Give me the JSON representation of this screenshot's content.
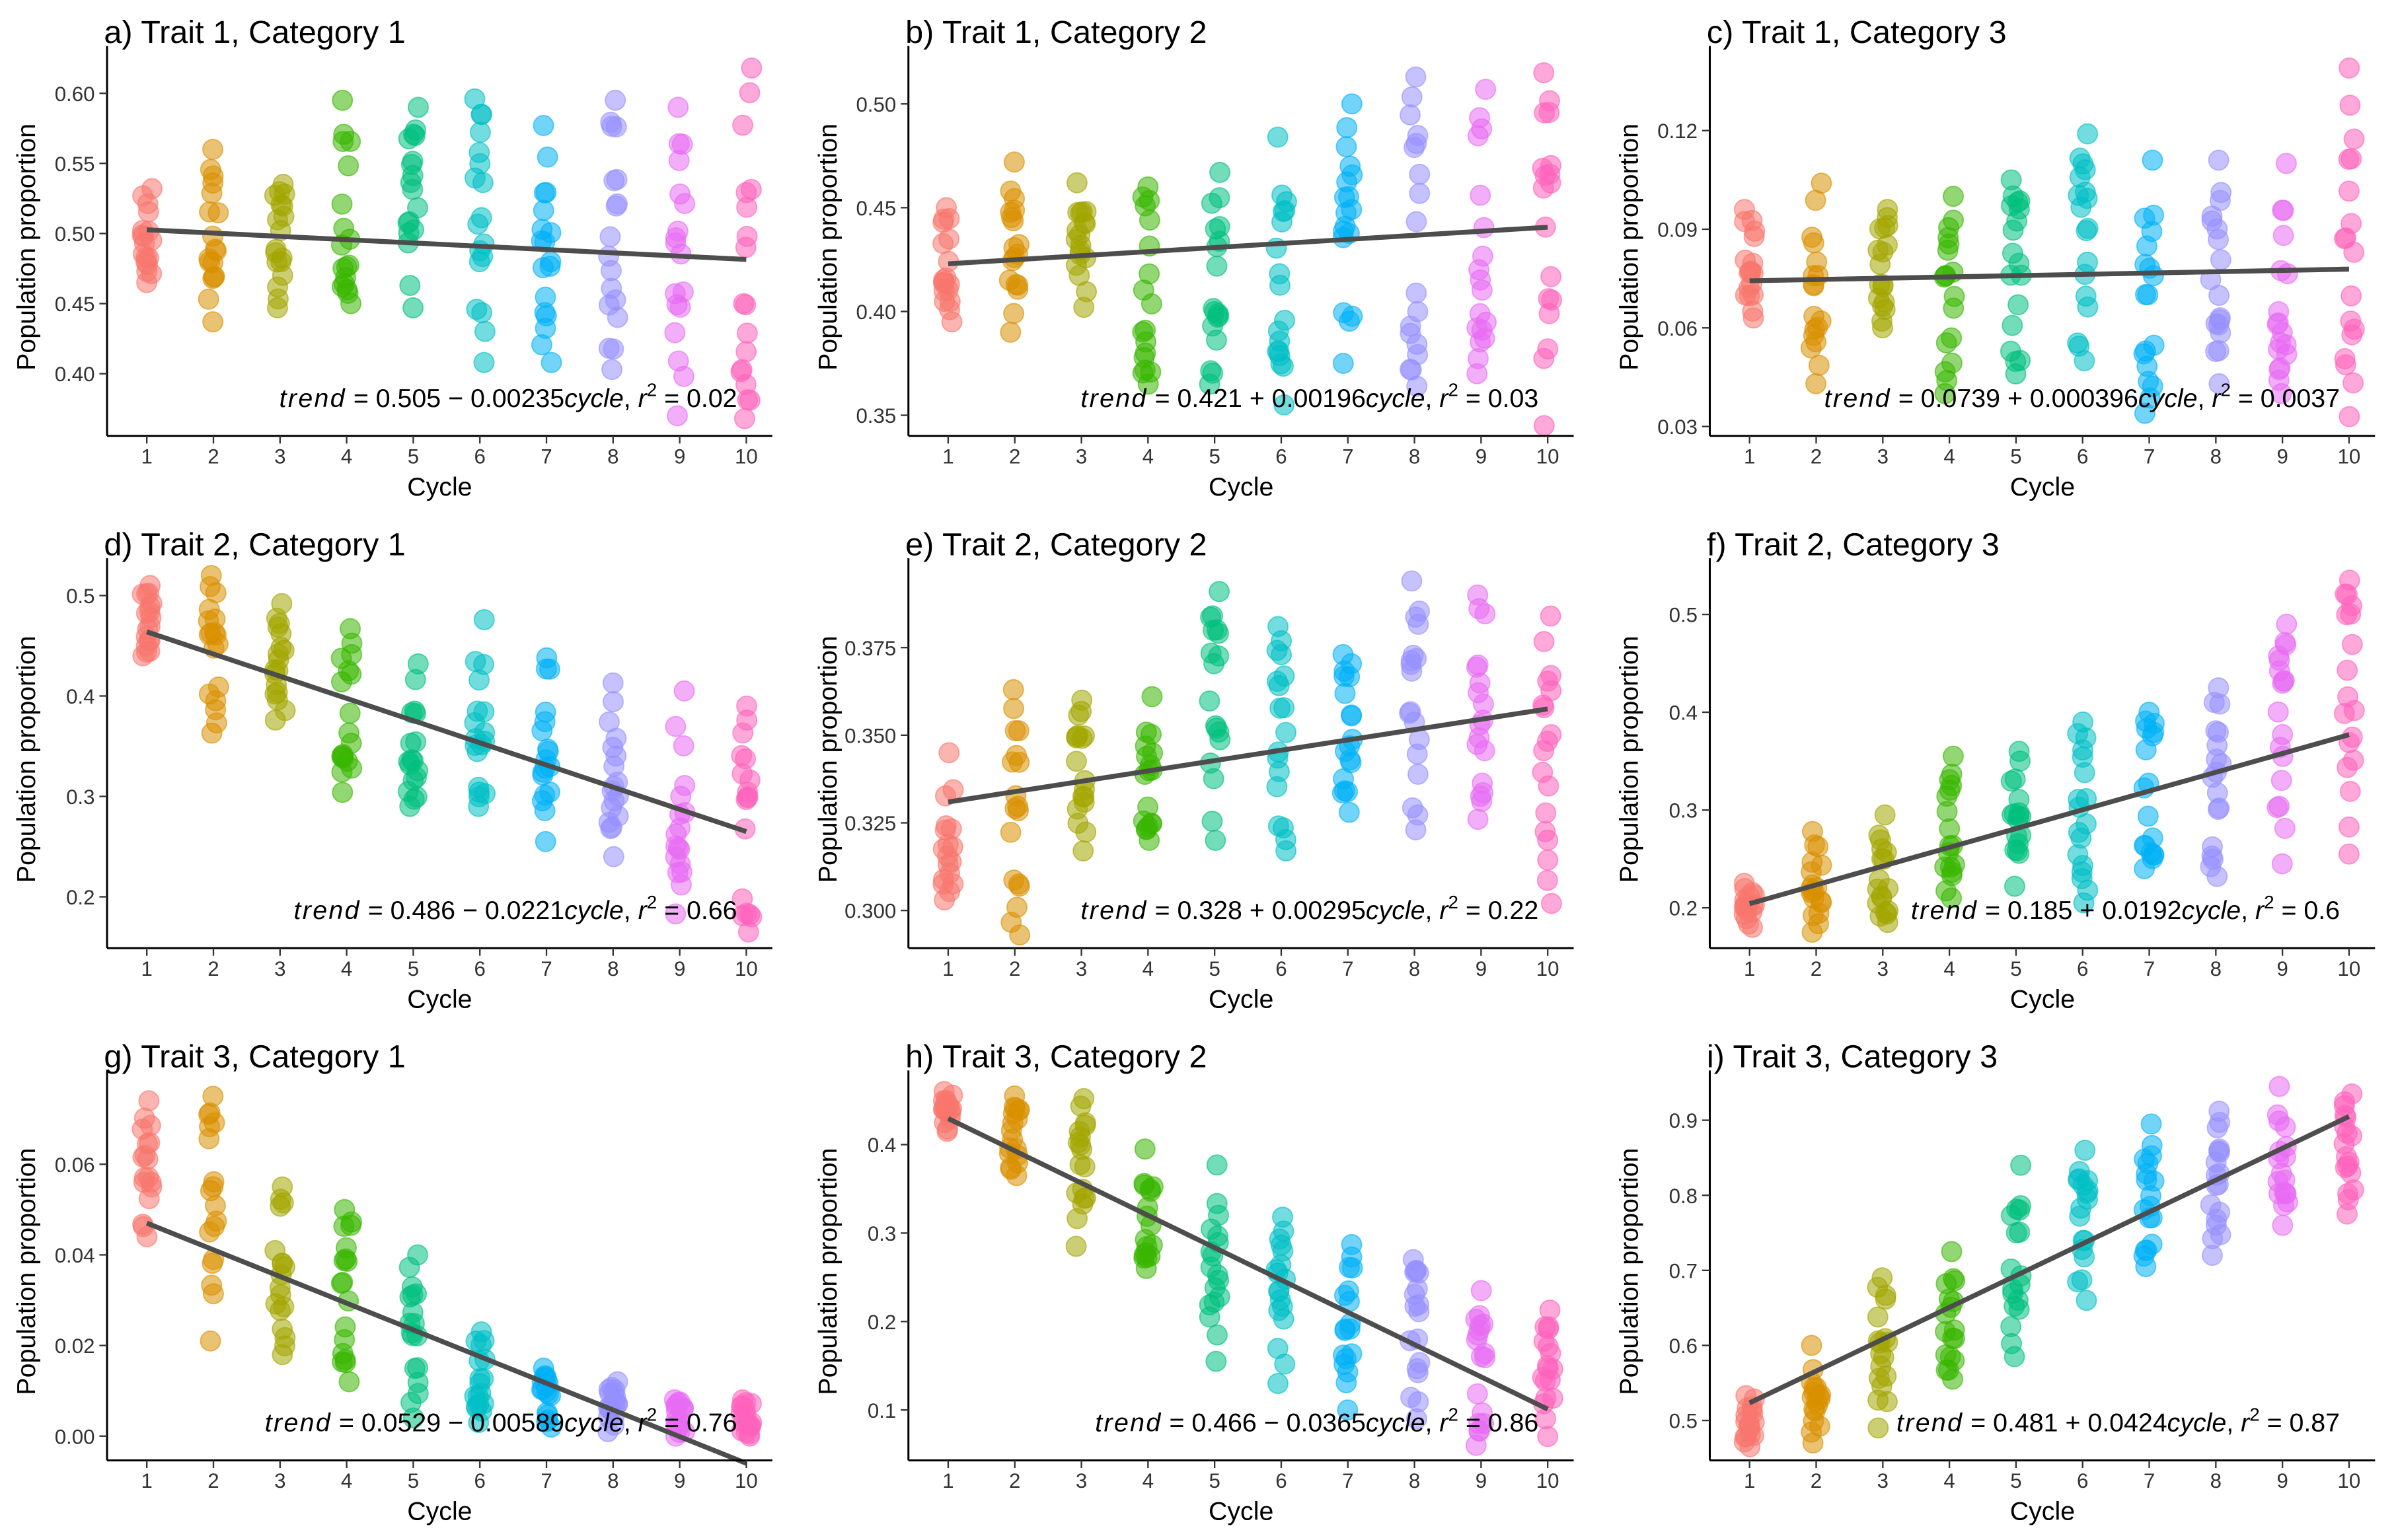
{
  "chart_data": {
    "type": "scatter",
    "palette": [
      "#F8766D",
      "#D89000",
      "#A3A500",
      "#39B600",
      "#00BF7D",
      "#00BFC4",
      "#00B0F6",
      "#9590FF",
      "#E76BF3",
      "#FF62BC"
    ],
    "x": [
      1,
      2,
      3,
      4,
      5,
      6,
      7,
      8,
      9,
      10
    ],
    "xlabel": "Cycle",
    "ylabel": "Population proportion",
    "trend_color": "#4D4D4D",
    "eq_prefix": "trend",
    "eq_var": "cycle",
    "eq_r": "r",
    "panels": [
      {
        "title": "a) Trait 1, Category 1",
        "ylim": [
          0.36,
          0.625
        ],
        "yticks": [
          "0.40",
          "0.45",
          "0.50",
          "0.55",
          "0.60"
        ],
        "intercept": "0.505",
        "sign": "−",
        "slope": "0.00235",
        "r2": "0.02",
        "ranges": [
          [
            0.465,
            0.532
          ],
          [
            0.437,
            0.56
          ],
          [
            0.447,
            0.535
          ],
          [
            0.45,
            0.595
          ],
          [
            0.447,
            0.59
          ],
          [
            0.408,
            0.596
          ],
          [
            0.408,
            0.577
          ],
          [
            0.403,
            0.595
          ],
          [
            0.37,
            0.59
          ],
          [
            0.368,
            0.618
          ]
        ]
      },
      {
        "title": "b) Trait 1, Category 2",
        "ylim": [
          0.343,
          0.522
        ],
        "yticks": [
          "0.35",
          "0.40",
          "0.45",
          "0.50"
        ],
        "intercept": "0.421",
        "sign": "+",
        "slope": "0.00196",
        "r2": "0.03",
        "ranges": [
          [
            0.395,
            0.45
          ],
          [
            0.39,
            0.472
          ],
          [
            0.402,
            0.462
          ],
          [
            0.365,
            0.46
          ],
          [
            0.365,
            0.467
          ],
          [
            0.355,
            0.484
          ],
          [
            0.375,
            0.5
          ],
          [
            0.364,
            0.513
          ],
          [
            0.37,
            0.507
          ],
          [
            0.345,
            0.515
          ]
        ]
      },
      {
        "title": "c) Trait 1, Category 3",
        "ylim": [
          0.029,
          0.142
        ],
        "yticks": [
          "0.03",
          "0.06",
          "0.09",
          "0.12"
        ],
        "intercept": "0.0739",
        "sign": "+",
        "slope": "0.000396",
        "r2": "0.0037",
        "ranges": [
          [
            0.063,
            0.096
          ],
          [
            0.043,
            0.104
          ],
          [
            0.06,
            0.096
          ],
          [
            0.04,
            0.1
          ],
          [
            0.046,
            0.105
          ],
          [
            0.05,
            0.119
          ],
          [
            0.034,
            0.111
          ],
          [
            0.043,
            0.111
          ],
          [
            0.04,
            0.11
          ],
          [
            0.033,
            0.139
          ]
        ]
      },
      {
        "title": "d) Trait 2, Category 1",
        "ylim": [
          0.155,
          0.525
        ],
        "yticks": [
          "0.2",
          "0.3",
          "0.4",
          "0.5"
        ],
        "intercept": "0.486",
        "sign": "−",
        "slope": "0.0221",
        "r2": "0.66",
        "ranges": [
          [
            0.44,
            0.51
          ],
          [
            0.363,
            0.52
          ],
          [
            0.376,
            0.492
          ],
          [
            0.304,
            0.467
          ],
          [
            0.29,
            0.432
          ],
          [
            0.29,
            0.476
          ],
          [
            0.255,
            0.438
          ],
          [
            0.24,
            0.413
          ],
          [
            0.183,
            0.405
          ],
          [
            0.165,
            0.39
          ]
        ]
      },
      {
        "title": "e) Trait 2, Category 2",
        "ylim": [
          0.291,
          0.397
        ],
        "yticks": [
          "0.300",
          "0.325",
          "0.350",
          "0.375"
        ],
        "intercept": "0.328",
        "sign": "+",
        "slope": "0.00295",
        "r2": "0.22",
        "ranges": [
          [
            0.303,
            0.345
          ],
          [
            0.293,
            0.363
          ],
          [
            0.317,
            0.36
          ],
          [
            0.32,
            0.361
          ],
          [
            0.32,
            0.391
          ],
          [
            0.317,
            0.381
          ],
          [
            0.328,
            0.373
          ],
          [
            0.323,
            0.394
          ],
          [
            0.326,
            0.39
          ],
          [
            0.302,
            0.384
          ]
        ]
      },
      {
        "title": "f) Trait 2, Category 3",
        "ylim": [
          0.165,
          0.545
        ],
        "yticks": [
          "0.2",
          "0.3",
          "0.4",
          "0.5"
        ],
        "intercept": "0.185",
        "sign": "+",
        "slope": "0.0192",
        "r2": "0.6",
        "ranges": [
          [
            0.18,
            0.225
          ],
          [
            0.175,
            0.278
          ],
          [
            0.185,
            0.295
          ],
          [
            0.21,
            0.355
          ],
          [
            0.222,
            0.36
          ],
          [
            0.205,
            0.39
          ],
          [
            0.24,
            0.4
          ],
          [
            0.232,
            0.425
          ],
          [
            0.245,
            0.49
          ],
          [
            0.255,
            0.535
          ]
        ]
      },
      {
        "title": "g) Trait 3, Category 1",
        "ylim": [
          -0.004,
          0.078
        ],
        "yticks": [
          "0.00",
          "0.02",
          "0.04",
          "0.06"
        ],
        "intercept": "0.0529",
        "sign": "−",
        "slope": "0.00589",
        "r2": "0.76",
        "ranges": [
          [
            0.044,
            0.074
          ],
          [
            0.021,
            0.075
          ],
          [
            0.018,
            0.055
          ],
          [
            0.012,
            0.05
          ],
          [
            0.004,
            0.04
          ],
          [
            0.003,
            0.023
          ],
          [
            0.002,
            0.015
          ],
          [
            0.001,
            0.012
          ],
          [
            0.0,
            0.008
          ],
          [
            0.0,
            0.008
          ]
        ]
      },
      {
        "title": "h) Trait 3, Category 2",
        "ylim": [
          0.05,
          0.47
        ],
        "yticks": [
          "0.1",
          "0.2",
          "0.3",
          "0.4"
        ],
        "intercept": "0.466",
        "sign": "−",
        "slope": "0.0365",
        "r2": "0.86",
        "ranges": [
          [
            0.415,
            0.46
          ],
          [
            0.365,
            0.455
          ],
          [
            0.285,
            0.452
          ],
          [
            0.26,
            0.395
          ],
          [
            0.155,
            0.377
          ],
          [
            0.13,
            0.318
          ],
          [
            0.1,
            0.287
          ],
          [
            0.09,
            0.27
          ],
          [
            0.06,
            0.235
          ],
          [
            0.07,
            0.213
          ]
        ]
      },
      {
        "title": "i) Trait 3, Category 3",
        "ylim": [
          0.455,
          0.95
        ],
        "yticks": [
          "0.5",
          "0.6",
          "0.7",
          "0.8",
          "0.9"
        ],
        "intercept": "0.481",
        "sign": "+",
        "slope": "0.0424",
        "r2": "0.87",
        "ranges": [
          [
            0.465,
            0.533
          ],
          [
            0.47,
            0.6
          ],
          [
            0.49,
            0.69
          ],
          [
            0.555,
            0.725
          ],
          [
            0.585,
            0.84
          ],
          [
            0.66,
            0.86
          ],
          [
            0.705,
            0.895
          ],
          [
            0.72,
            0.912
          ],
          [
            0.76,
            0.945
          ],
          [
            0.775,
            0.935
          ]
        ]
      }
    ]
  }
}
